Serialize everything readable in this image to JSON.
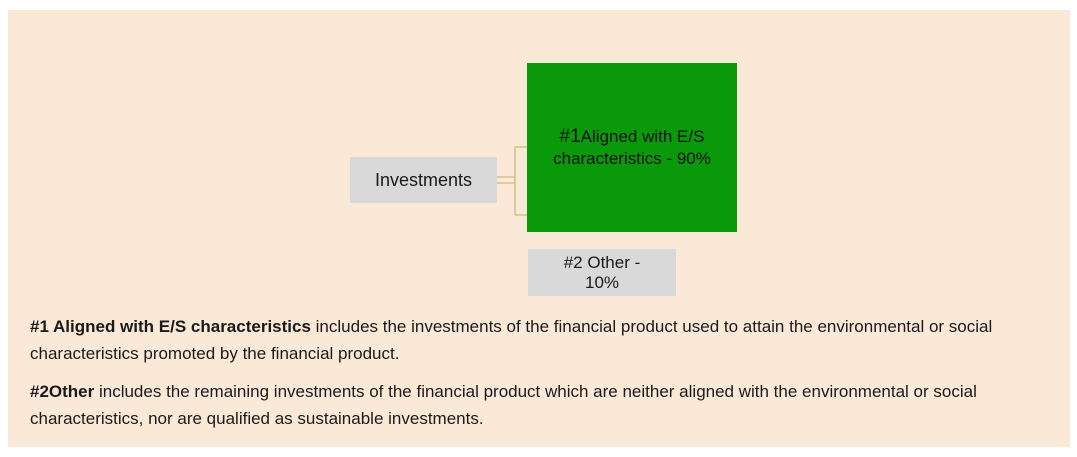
{
  "diagram": {
    "root": {
      "label": "Investments"
    },
    "children": [
      {
        "prefix": "#1",
        "label": "Aligned with E/S characteristics - 90%"
      },
      {
        "label": "#2 Other - 10%"
      }
    ]
  },
  "notes": [
    {
      "bold": "#1 Aligned with E/S characteristics",
      "text": " includes the investments of the financial product used to attain the environmental or social characteristics promoted by the financial product."
    },
    {
      "bold": "#2Other",
      "text": " includes the remaining investments of the financial product which are neither aligned with the environmental or social characteristics, nor are qualified as sustainable investments."
    }
  ]
}
